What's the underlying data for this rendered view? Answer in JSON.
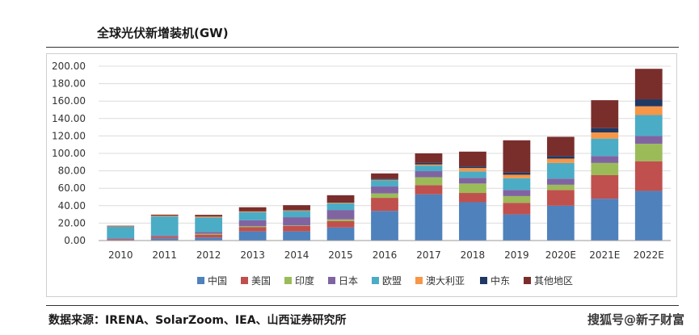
{
  "chart_data": {
    "type": "bar",
    "stacked": true,
    "title": "全球光伏新增装机(GW)",
    "categories": [
      "2010",
      "2011",
      "2012",
      "2013",
      "2014",
      "2015",
      "2016",
      "2017",
      "2018",
      "2019",
      "2020E",
      "2021E",
      "2022E"
    ],
    "ylim": [
      0,
      200
    ],
    "yticks": [
      "0.00",
      "20.00",
      "40.00",
      "60.00",
      "80.00",
      "100.00",
      "120.00",
      "140.00",
      "160.00",
      "180.00",
      "200.00"
    ],
    "grid": true,
    "legend_position": "bottom",
    "series": [
      {
        "name": "中国",
        "color": "#4f81bd",
        "values": [
          0.5,
          2.5,
          3.5,
          10.5,
          10.5,
          15,
          34,
          53,
          44,
          30,
          40,
          48,
          57
        ]
      },
      {
        "name": "美国",
        "color": "#c0504d",
        "values": [
          0.9,
          1.8,
          3.3,
          4.8,
          6.2,
          7.3,
          15,
          10.6,
          10.6,
          13.3,
          18,
          27,
          34
        ]
      },
      {
        "name": "印度",
        "color": "#9bbb59",
        "values": [
          0.1,
          0.2,
          1.0,
          1.1,
          0.6,
          2.0,
          5.0,
          9.0,
          10.8,
          7.7,
          6.0,
          14,
          20
        ]
      },
      {
        "name": "日本",
        "color": "#8064a2",
        "values": [
          1.0,
          1.3,
          2.0,
          7.0,
          9.5,
          10.8,
          8.0,
          7.0,
          6.6,
          7.0,
          7.0,
          8.0,
          9.0
        ]
      },
      {
        "name": "欧盟",
        "color": "#4bacc6",
        "values": [
          13.4,
          21.9,
          16.7,
          9.1,
          7.0,
          7.5,
          7.0,
          6.4,
          7.4,
          13.5,
          18,
          20,
          24
        ]
      },
      {
        "name": "澳大利亚",
        "color": "#f79646",
        "values": [
          0.4,
          0.8,
          1.0,
          0.8,
          0.9,
          0.9,
          0.8,
          1.3,
          3.8,
          4.0,
          5.0,
          7.0,
          10
        ]
      },
      {
        "name": "中东",
        "color": "#1f3864",
        "values": [
          0.0,
          0.0,
          0.1,
          0.3,
          0.4,
          0.5,
          1.2,
          1.7,
          1.8,
          2.5,
          3.0,
          5.0,
          8.0
        ]
      },
      {
        "name": "其他地区",
        "color": "#7a2e2c",
        "values": [
          0.7,
          1.2,
          1.9,
          4.6,
          5.5,
          8.0,
          6.0,
          11.0,
          17.0,
          37.0,
          22,
          32,
          35
        ]
      }
    ]
  },
  "source": "数据来源：IRENA、SolarZoom、IEA、山西证券研究所",
  "watermark": "搜狐号@新子财富"
}
